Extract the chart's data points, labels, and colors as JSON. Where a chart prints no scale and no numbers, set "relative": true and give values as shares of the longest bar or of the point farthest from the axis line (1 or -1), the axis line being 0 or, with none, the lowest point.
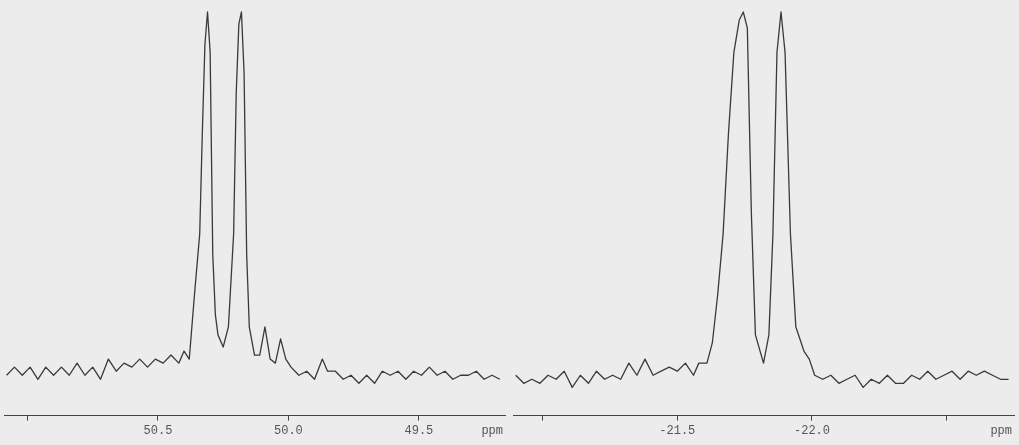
{
  "chart_data": [
    {
      "type": "line",
      "xlabel": "ppm",
      "relative": true,
      "xlim": [
        51.09,
        49.17
      ],
      "xticks": [
        {
          "value": 51.0,
          "label": null
        },
        50.5,
        {
          "value": 50,
          "label": "50.0"
        },
        49.5
      ],
      "series": [
        {
          "color": "#3a3a3a",
          "x": [
            51.08,
            51.05,
            51.02,
            50.99,
            50.96,
            50.93,
            50.9,
            50.87,
            50.84,
            50.81,
            50.78,
            50.75,
            50.72,
            50.69,
            50.66,
            50.63,
            50.6,
            50.57,
            50.54,
            50.51,
            50.48,
            50.45,
            50.42,
            50.4,
            50.38,
            50.36,
            50.34,
            50.33,
            50.32,
            50.31,
            50.3,
            50.29,
            50.28,
            50.27,
            50.25,
            50.23,
            50.21,
            50.2,
            50.19,
            50.18,
            50.17,
            50.16,
            50.15,
            50.13,
            50.11,
            50.09,
            50.07,
            50.05,
            50.03,
            50.01,
            49.99,
            49.96,
            49.93,
            49.9,
            49.87,
            49.85,
            49.82,
            49.79,
            49.76,
            49.73,
            49.7,
            49.67,
            49.64,
            49.61,
            49.58,
            49.55,
            49.52,
            49.49,
            49.46,
            49.43,
            49.4,
            49.37,
            49.34,
            49.31,
            49.28,
            49.25,
            49.22,
            49.19
          ],
          "values": [
            0.1,
            0.12,
            0.1,
            0.12,
            0.09,
            0.12,
            0.1,
            0.12,
            0.1,
            0.13,
            0.1,
            0.12,
            0.09,
            0.14,
            0.11,
            0.13,
            0.12,
            0.14,
            0.12,
            0.14,
            0.13,
            0.15,
            0.13,
            0.16,
            0.14,
            0.3,
            0.45,
            0.7,
            0.92,
            1.0,
            0.9,
            0.4,
            0.25,
            0.2,
            0.17,
            0.22,
            0.45,
            0.8,
            0.97,
            1.0,
            0.85,
            0.4,
            0.22,
            0.15,
            0.15,
            0.22,
            0.14,
            0.13,
            0.19,
            0.14,
            0.12,
            0.1,
            0.11,
            0.09,
            0.14,
            0.11,
            0.11,
            0.09,
            0.1,
            0.08,
            0.1,
            0.08,
            0.11,
            0.1,
            0.11,
            0.09,
            0.11,
            0.1,
            0.12,
            0.1,
            0.11,
            0.09,
            0.1,
            0.1,
            0.11,
            0.09,
            0.1,
            0.09
          ]
        }
      ]
    },
    {
      "type": "line",
      "xlabel": "ppm",
      "relative": true,
      "xlim": [
        -20.89,
        -22.75
      ],
      "xticks": [
        {
          "value": -21.0,
          "label": null
        },
        -21.5,
        {
          "value": -22,
          "label": "-22.0"
        },
        {
          "value": -22.5,
          "label": null
        }
      ],
      "series": [
        {
          "color": "#3a3a3a",
          "x": [
            -20.9,
            -20.93,
            -20.96,
            -20.99,
            -21.02,
            -21.05,
            -21.08,
            -21.11,
            -21.14,
            -21.17,
            -21.2,
            -21.23,
            -21.26,
            -21.29,
            -21.32,
            -21.35,
            -21.38,
            -21.41,
            -21.44,
            -21.47,
            -21.5,
            -21.53,
            -21.56,
            -21.58,
            -21.61,
            -21.63,
            -21.65,
            -21.67,
            -21.69,
            -21.71,
            -21.73,
            -21.745,
            -21.76,
            -21.775,
            -21.79,
            -21.82,
            -21.84,
            -21.855,
            -21.87,
            -21.885,
            -21.9,
            -21.92,
            -21.94,
            -21.97,
            -21.99,
            -22.01,
            -22.04,
            -22.07,
            -22.1,
            -22.13,
            -22.16,
            -22.19,
            -22.22,
            -22.25,
            -22.28,
            -22.31,
            -22.34,
            -22.37,
            -22.4,
            -22.43,
            -22.46,
            -22.49,
            -22.52,
            -22.55,
            -22.58,
            -22.61,
            -22.64,
            -22.67,
            -22.7,
            -22.73
          ],
          "values": [
            0.1,
            0.08,
            0.09,
            0.08,
            0.1,
            0.09,
            0.11,
            0.07,
            0.1,
            0.08,
            0.11,
            0.09,
            0.1,
            0.09,
            0.13,
            0.1,
            0.14,
            0.1,
            0.11,
            0.12,
            0.11,
            0.13,
            0.1,
            0.13,
            0.13,
            0.18,
            0.3,
            0.45,
            0.7,
            0.9,
            0.98,
            1.0,
            0.96,
            0.5,
            0.2,
            0.13,
            0.2,
            0.45,
            0.9,
            1.0,
            0.9,
            0.45,
            0.22,
            0.16,
            0.14,
            0.1,
            0.09,
            0.1,
            0.08,
            0.09,
            0.1,
            0.07,
            0.09,
            0.08,
            0.1,
            0.08,
            0.08,
            0.1,
            0.09,
            0.11,
            0.09,
            0.1,
            0.11,
            0.09,
            0.11,
            0.1,
            0.11,
            0.1,
            0.09,
            0.09
          ]
        }
      ]
    }
  ]
}
